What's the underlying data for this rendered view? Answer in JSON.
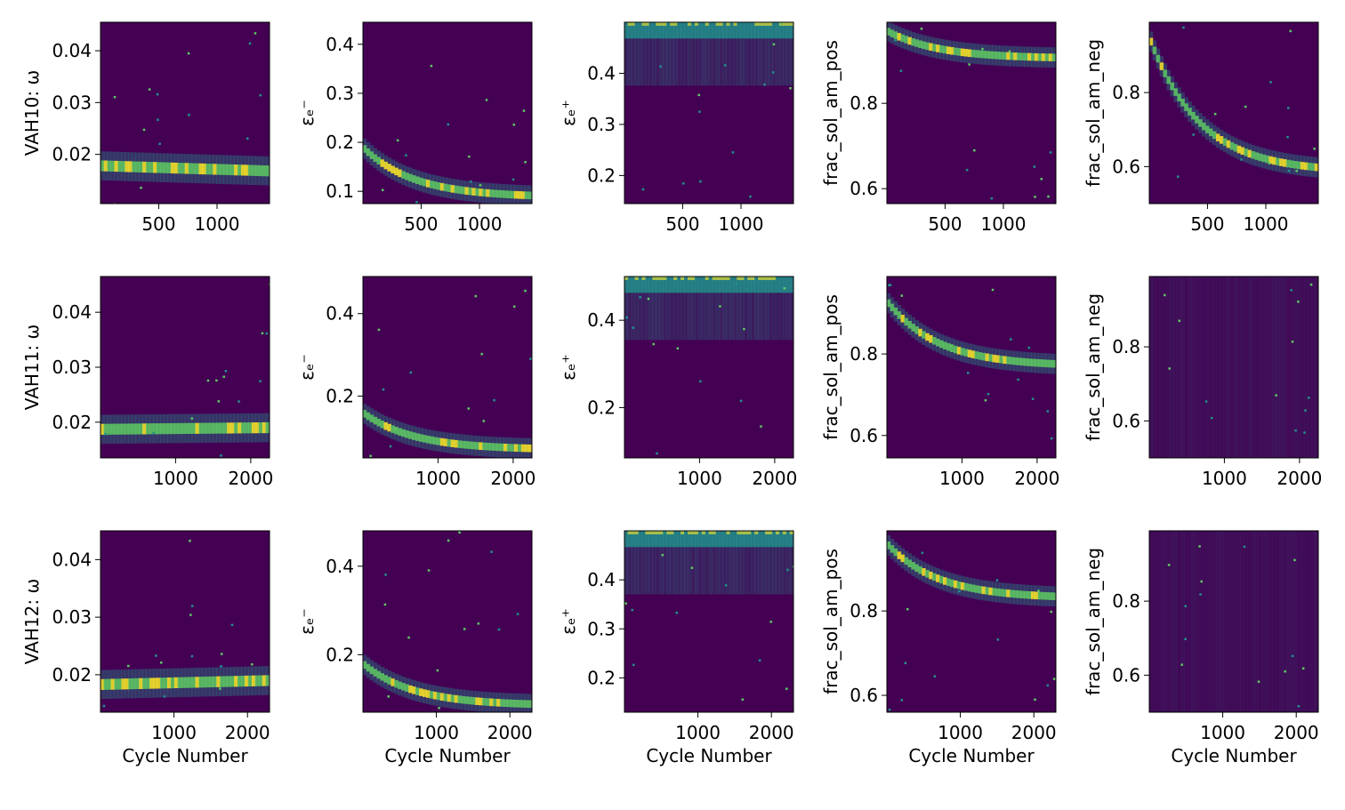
{
  "figure": {
    "description_colors": {
      "background": "#440154",
      "mid": "#21918c",
      "high": "#fde725"
    },
    "xlabel": "Cycle Number",
    "colormap": "viridis"
  },
  "chart_data": [
    {
      "type": "heatmap",
      "row": 0,
      "col": 0,
      "ylabel": "VAH10: ω",
      "xlabel": "",
      "xlim": [
        1,
        1450
      ],
      "ylim": [
        0.0105,
        0.0455
      ],
      "xticks": [
        500,
        1000
      ],
      "yticks": [
        0.02,
        0.03,
        0.04
      ],
      "ytick_labels": [
        "0.02",
        "0.03",
        "0.04"
      ],
      "band": {
        "shape": "flat",
        "start": 0.0178,
        "end": 0.0168
      }
    },
    {
      "type": "heatmap",
      "row": 0,
      "col": 1,
      "ylabel": "εₑ⁻",
      "xlabel": "",
      "xlim": [
        1,
        1450
      ],
      "ylim": [
        0.075,
        0.445
      ],
      "xticks": [
        500,
        1000
      ],
      "yticks": [
        0.1,
        0.2,
        0.3,
        0.4
      ],
      "ytick_labels": [
        "0.1",
        "0.2",
        "0.3",
        "0.4"
      ],
      "band": {
        "shape": "decay",
        "start": 0.19,
        "end": 0.088
      }
    },
    {
      "type": "heatmap",
      "row": 0,
      "col": 2,
      "ylabel": "εₑ⁺",
      "xlabel": "",
      "xlim": [
        1,
        1450
      ],
      "ylim": [
        0.145,
        0.5
      ],
      "xticks": [
        500,
        1000
      ],
      "yticks": [
        0.2,
        0.3,
        0.4
      ],
      "ytick_labels": [
        "0.2",
        "0.3",
        "0.4"
      ],
      "band": {
        "shape": "top",
        "start": 0.49,
        "end": 0.495
      }
    },
    {
      "type": "heatmap",
      "row": 0,
      "col": 3,
      "ylabel": "frac_sol_am_pos",
      "xlabel": "",
      "xlim": [
        1,
        1450
      ],
      "ylim": [
        0.565,
        0.99
      ],
      "xticks": [
        500,
        1000
      ],
      "yticks": [
        0.6,
        0.8
      ],
      "ytick_labels": [
        "0.6",
        "0.8"
      ],
      "band": {
        "shape": "decay",
        "start": 0.97,
        "end": 0.905
      }
    },
    {
      "type": "heatmap",
      "row": 0,
      "col": 4,
      "ylabel": "frac_sol_am_neg",
      "xlabel": "",
      "xlim": [
        1,
        1450
      ],
      "ylim": [
        0.5,
        0.99
      ],
      "xticks": [
        500,
        1000
      ],
      "yticks": [
        0.6,
        0.8
      ],
      "ytick_labels": [
        "0.6",
        "0.8"
      ],
      "band": {
        "shape": "decay",
        "start": 0.95,
        "end": 0.585
      }
    },
    {
      "type": "heatmap",
      "row": 1,
      "col": 0,
      "ylabel": "VAH11: ω",
      "xlabel": "",
      "xlim": [
        1,
        2250
      ],
      "ylim": [
        0.0135,
        0.0465
      ],
      "xticks": [
        1000,
        2000
      ],
      "yticks": [
        0.02,
        0.03,
        0.04
      ],
      "ytick_labels": [
        "0.02",
        "0.03",
        "0.04"
      ],
      "band": {
        "shape": "flat",
        "start": 0.0187,
        "end": 0.019
      }
    },
    {
      "type": "heatmap",
      "row": 1,
      "col": 1,
      "ylabel": "εₑ⁻",
      "xlabel": "",
      "xlim": [
        1,
        2250
      ],
      "ylim": [
        0.05,
        0.49
      ],
      "xticks": [
        1000,
        2000
      ],
      "yticks": [
        0.2,
        0.4
      ],
      "ytick_labels": [
        "0.2",
        "0.4"
      ],
      "band": {
        "shape": "decay",
        "start": 0.16,
        "end": 0.07
      }
    },
    {
      "type": "heatmap",
      "row": 1,
      "col": 2,
      "ylabel": "εₑ⁺",
      "xlabel": "",
      "xlim": [
        1,
        2250
      ],
      "ylim": [
        0.085,
        0.5
      ],
      "xticks": [
        1000,
        2000
      ],
      "yticks": [
        0.2,
        0.4
      ],
      "ytick_labels": [
        "0.2",
        "0.4"
      ],
      "band": {
        "shape": "top",
        "start": 0.48,
        "end": 0.48
      }
    },
    {
      "type": "heatmap",
      "row": 1,
      "col": 3,
      "ylabel": "frac_sol_am_pos",
      "xlabel": "",
      "xlim": [
        1,
        2250
      ],
      "ylim": [
        0.545,
        0.99
      ],
      "xticks": [
        1000,
        2000
      ],
      "yticks": [
        0.6,
        0.8
      ],
      "ytick_labels": [
        "0.6",
        "0.8"
      ],
      "band": {
        "shape": "decay",
        "start": 0.93,
        "end": 0.77
      }
    },
    {
      "type": "heatmap",
      "row": 1,
      "col": 4,
      "ylabel": "frac_sol_am_neg",
      "xlabel": "",
      "xlim": [
        1,
        2250
      ],
      "ylim": [
        0.5,
        0.99
      ],
      "xticks": [
        1000,
        2000
      ],
      "yticks": [
        0.6,
        0.8
      ],
      "ytick_labels": [
        "0.6",
        "0.8"
      ],
      "band": {
        "shape": "diffuse",
        "start": 0.6,
        "end": 0.57
      }
    },
    {
      "type": "heatmap",
      "row": 2,
      "col": 0,
      "ylabel": "VAH12: ω",
      "xlabel": "Cycle Number",
      "xlim": [
        1,
        2300
      ],
      "ylim": [
        0.0135,
        0.045
      ],
      "xticks": [
        1000,
        2000
      ],
      "yticks": [
        0.02,
        0.03,
        0.04
      ],
      "ytick_labels": [
        "0.02",
        "0.03",
        "0.04"
      ],
      "band": {
        "shape": "flat",
        "start": 0.0183,
        "end": 0.019
      }
    },
    {
      "type": "heatmap",
      "row": 2,
      "col": 1,
      "ylabel": "εₑ⁻",
      "xlabel": "Cycle Number",
      "xlim": [
        1,
        2300
      ],
      "ylim": [
        0.07,
        0.48
      ],
      "xticks": [
        1000,
        2000
      ],
      "yticks": [
        0.2,
        0.4
      ],
      "ytick_labels": [
        "0.2",
        "0.4"
      ],
      "band": {
        "shape": "decay",
        "start": 0.18,
        "end": 0.085
      }
    },
    {
      "type": "heatmap",
      "row": 2,
      "col": 2,
      "ylabel": "εₑ⁺",
      "xlabel": "Cycle Number",
      "xlim": [
        1,
        2300
      ],
      "ylim": [
        0.13,
        0.5
      ],
      "xticks": [
        1000,
        2000
      ],
      "yticks": [
        0.2,
        0.3,
        0.4
      ],
      "ytick_labels": [
        "0.2",
        "0.3",
        "0.4"
      ],
      "band": {
        "shape": "top",
        "start": 0.485,
        "end": 0.485
      }
    },
    {
      "type": "heatmap",
      "row": 2,
      "col": 3,
      "ylabel": "frac_sol_am_pos",
      "xlabel": "Cycle Number",
      "xlim": [
        1,
        2300
      ],
      "ylim": [
        0.56,
        0.99
      ],
      "xticks": [
        1000,
        2000
      ],
      "yticks": [
        0.6,
        0.8
      ],
      "ytick_labels": [
        "0.6",
        "0.8"
      ],
      "band": {
        "shape": "decay",
        "start": 0.96,
        "end": 0.83
      }
    },
    {
      "type": "heatmap",
      "row": 2,
      "col": 4,
      "ylabel": "frac_sol_am_neg",
      "xlabel": "Cycle Number",
      "xlim": [
        1,
        2300
      ],
      "ylim": [
        0.5,
        0.99
      ],
      "xticks": [
        1000,
        2000
      ],
      "yticks": [
        0.6,
        0.8
      ],
      "ytick_labels": [
        "0.6",
        "0.8"
      ],
      "band": {
        "shape": "diffuse",
        "start": 0.7,
        "end": 0.7
      }
    }
  ]
}
